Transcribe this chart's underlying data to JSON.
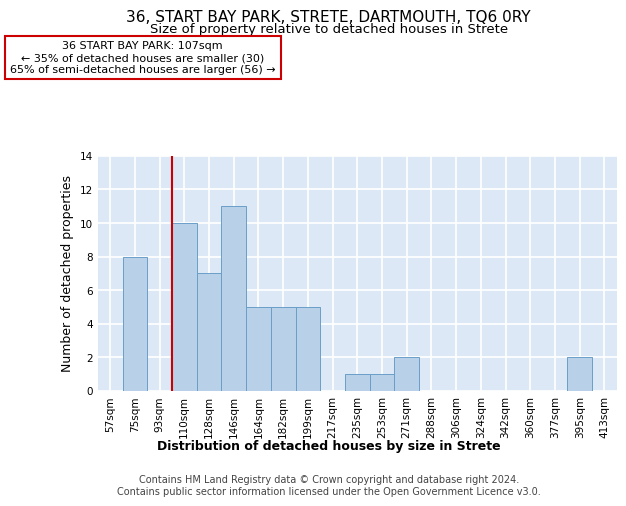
{
  "title1": "36, START BAY PARK, STRETE, DARTMOUTH, TQ6 0RY",
  "title2": "Size of property relative to detached houses in Strete",
  "xlabel": "Distribution of detached houses by size in Strete",
  "ylabel": "Number of detached properties",
  "categories": [
    "57sqm",
    "75sqm",
    "93sqm",
    "110sqm",
    "128sqm",
    "146sqm",
    "164sqm",
    "182sqm",
    "199sqm",
    "217sqm",
    "235sqm",
    "253sqm",
    "271sqm",
    "288sqm",
    "306sqm",
    "324sqm",
    "342sqm",
    "360sqm",
    "377sqm",
    "395sqm",
    "413sqm"
  ],
  "values": [
    0,
    8,
    0,
    10,
    7,
    11,
    5,
    5,
    5,
    0,
    1,
    1,
    2,
    0,
    0,
    0,
    0,
    0,
    0,
    2,
    0
  ],
  "bar_color": "#b8d0e8",
  "bar_edge_color": "#6a9fc8",
  "background_color": "#dce8f5",
  "grid_color": "#ffffff",
  "annotation_box_text": "36 START BAY PARK: 107sqm\n← 35% of detached houses are smaller (30)\n65% of semi-detached houses are larger (56) →",
  "annotation_box_color": "#ffffff",
  "annotation_box_edge_color": "#cc0000",
  "vline_x": 2.5,
  "vline_color": "#cc0000",
  "ylim": [
    0,
    14
  ],
  "yticks": [
    0,
    2,
    4,
    6,
    8,
    10,
    12,
    14
  ],
  "footer": "Contains HM Land Registry data © Crown copyright and database right 2024.\nContains public sector information licensed under the Open Government Licence v3.0.",
  "title_fontsize": 11,
  "subtitle_fontsize": 9.5,
  "axis_label_fontsize": 9,
  "tick_fontsize": 7.5,
  "annotation_fontsize": 8
}
